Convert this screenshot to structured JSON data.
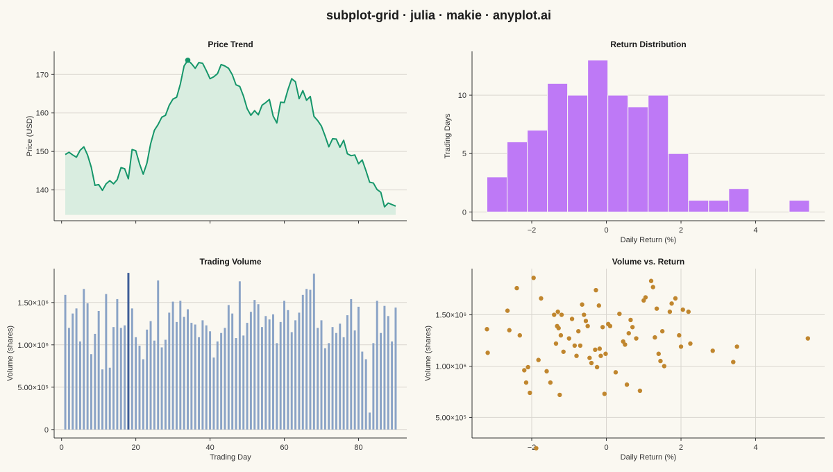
{
  "title": "subplot-grid · julia · makie · anyplot.ai",
  "colors": {
    "background": "#FAF8F1",
    "price_line": "#16966A",
    "price_fill": "#D9EDE0",
    "histogram": "#BE79F6",
    "volume_bar": "#8AA3C6",
    "volume_highlight": "#3D5D98",
    "scatter": "#C0862E"
  },
  "chart_data": [
    {
      "id": "price",
      "type": "area",
      "title": "Price Trend",
      "xlabel": "",
      "ylabel": "Price (USD)",
      "xlim": [
        -2,
        93
      ],
      "ylim": [
        132,
        176
      ],
      "xticks": [
        0,
        20,
        40,
        60,
        80
      ],
      "xtick_labels": [],
      "yticks": [
        140,
        150,
        160,
        170
      ],
      "grid": true,
      "highlight_day": 34,
      "x": [
        1,
        2,
        3,
        4,
        5,
        6,
        7,
        8,
        9,
        10,
        11,
        12,
        13,
        14,
        15,
        16,
        17,
        18,
        19,
        20,
        21,
        22,
        23,
        24,
        25,
        26,
        27,
        28,
        29,
        30,
        31,
        32,
        33,
        34,
        35,
        36,
        37,
        38,
        39,
        40,
        41,
        42,
        43,
        44,
        45,
        46,
        47,
        48,
        49,
        50,
        51,
        52,
        53,
        54,
        55,
        56,
        57,
        58,
        59,
        60,
        61,
        62,
        63,
        64,
        65,
        66,
        67,
        68,
        69,
        70,
        71,
        72,
        73,
        74,
        75,
        76,
        77,
        78,
        79,
        80,
        81,
        82,
        83,
        84,
        85,
        86,
        87,
        88,
        89,
        90
      ],
      "y": [
        149.2,
        149.8,
        149.1,
        148.5,
        150.3,
        151.2,
        149.1,
        145.9,
        141.2,
        141.4,
        139.9,
        141.6,
        142.4,
        141.6,
        142.7,
        145.8,
        145.5,
        142.9,
        150.5,
        150.2,
        146.8,
        144.1,
        147.0,
        152.0,
        155.5,
        157.0,
        158.9,
        159.4,
        162.0,
        163.6,
        164.1,
        167.5,
        172.2,
        173.7,
        172.8,
        171.6,
        173.1,
        172.9,
        171.0,
        168.9,
        169.4,
        170.2,
        172.6,
        172.2,
        171.6,
        169.9,
        167.3,
        166.9,
        164.4,
        161.1,
        159.4,
        160.6,
        159.5,
        162.0,
        162.7,
        163.5,
        159.2,
        157.4,
        162.8,
        162.7,
        166.1,
        168.9,
        168.1,
        163.7,
        165.8,
        163.3,
        164.3,
        159.1,
        158.0,
        156.6,
        154.0,
        151.2,
        153.3,
        153.2,
        151.1,
        152.9,
        149.4,
        148.9,
        149.1,
        146.8,
        147.8,
        145.0,
        142.0,
        141.8,
        140.1,
        139.4,
        135.6,
        136.6,
        136.2,
        135.8
      ]
    },
    {
      "id": "returns",
      "type": "bar",
      "title": "Return Distribution",
      "xlabel": "Daily Return (%)",
      "ylabel": "Trading Days",
      "xlim": [
        -3.6,
        5.85
      ],
      "ylim": [
        -0.75,
        13.75
      ],
      "xticks": [
        -2,
        0,
        2,
        4
      ],
      "xtick_labels": [
        "−2",
        "0",
        "2",
        "4"
      ],
      "yticks": [
        0,
        5,
        10
      ],
      "grid": true,
      "bin_start": -3.2,
      "bin_width": 0.54,
      "counts": [
        3,
        6,
        7,
        11,
        10,
        13,
        10,
        9,
        10,
        5,
        1,
        1,
        2,
        0,
        0,
        1
      ]
    },
    {
      "id": "volume",
      "type": "bar",
      "title": "Trading Volume",
      "xlabel": "Trading Day",
      "ylabel": "Volume (shares)",
      "xlim": [
        -2,
        93
      ],
      "ylim": [
        -100000,
        1900000
      ],
      "xticks": [
        0,
        20,
        40,
        60,
        80
      ],
      "xtick_labels": [
        "0",
        "20",
        "40",
        "60",
        "80"
      ],
      "yticks": [
        0,
        500000,
        1000000,
        1500000
      ],
      "ytick_labels": [
        "0",
        "5.00×10⁵",
        "1.00×10⁶",
        "1.50×10⁶"
      ],
      "grid": true,
      "highlight_day": 18,
      "x": [
        1,
        2,
        3,
        4,
        5,
        6,
        7,
        8,
        9,
        10,
        11,
        12,
        13,
        14,
        15,
        16,
        17,
        18,
        19,
        20,
        21,
        22,
        23,
        24,
        25,
        26,
        27,
        28,
        29,
        30,
        31,
        32,
        33,
        34,
        35,
        36,
        37,
        38,
        39,
        40,
        41,
        42,
        43,
        44,
        45,
        46,
        47,
        48,
        49,
        50,
        51,
        52,
        53,
        54,
        55,
        56,
        57,
        58,
        59,
        60,
        61,
        62,
        63,
        64,
        65,
        66,
        67,
        68,
        69,
        70,
        71,
        72,
        73,
        74,
        75,
        76,
        77,
        78,
        79,
        80,
        81,
        82,
        83,
        84,
        85,
        86,
        87,
        88,
        89,
        90
      ],
      "values": [
        1590000,
        1200000,
        1370000,
        1430000,
        1040000,
        1660000,
        1490000,
        890000,
        1130000,
        1400000,
        710000,
        1600000,
        730000,
        1210000,
        1540000,
        1200000,
        1230000,
        1850000,
        1430000,
        1090000,
        990000,
        830000,
        1180000,
        1280000,
        1050000,
        1760000,
        970000,
        1060000,
        1380000,
        1510000,
        1270000,
        1520000,
        1330000,
        1420000,
        1260000,
        1240000,
        1090000,
        1290000,
        1230000,
        1160000,
        850000,
        1040000,
        1140000,
        1200000,
        1470000,
        1370000,
        1080000,
        1750000,
        1110000,
        1260000,
        1390000,
        1530000,
        1480000,
        1210000,
        1340000,
        1300000,
        1360000,
        1020000,
        1270000,
        1520000,
        1410000,
        1150000,
        1290000,
        1380000,
        1590000,
        1660000,
        1650000,
        1840000,
        1200000,
        1290000,
        960000,
        1020000,
        1210000,
        1140000,
        1250000,
        1090000,
        1350000,
        1540000,
        1170000,
        1450000,
        920000,
        830000,
        200000,
        1020000,
        1520000,
        1140000,
        1460000,
        1340000,
        1040000,
        1440000
      ]
    },
    {
      "id": "scatter",
      "type": "scatter",
      "title": "Volume vs. Return",
      "xlabel": "Daily Return (%)",
      "ylabel": "Volume (shares)",
      "xlim": [
        -3.6,
        5.85
      ],
      "ylim": [
        300000,
        1950000
      ],
      "xticks": [
        -2,
        0,
        2,
        4
      ],
      "xtick_labels": [
        "−2",
        "0",
        "2",
        "4"
      ],
      "yticks": [
        500000,
        1000000,
        1500000
      ],
      "ytick_labels": [
        "5.00×10⁵",
        "1.00×10⁶",
        "1.50×10⁶"
      ],
      "grid": true,
      "x": [
        -3.2,
        -3.18,
        -2.4,
        -2.65,
        -2.6,
        -2.32,
        -2.2,
        -2.15,
        -2.1,
        -2.05,
        -1.95,
        -1.88,
        -1.82,
        -1.75,
        -1.6,
        -1.5,
        -1.4,
        -1.35,
        -1.32,
        -1.3,
        -1.28,
        -1.25,
        -1.22,
        -1.2,
        -1.15,
        -1.0,
        -0.92,
        -0.85,
        -0.8,
        -0.75,
        -0.7,
        -0.65,
        -0.6,
        -0.55,
        -0.5,
        -0.45,
        -0.4,
        -0.3,
        -0.28,
        -0.25,
        -0.2,
        -0.18,
        -0.15,
        -0.1,
        -0.05,
        -0.02,
        0.05,
        0.1,
        0.25,
        0.35,
        0.45,
        0.5,
        0.55,
        0.6,
        0.65,
        0.7,
        0.8,
        0.9,
        1.0,
        1.05,
        1.2,
        1.25,
        1.3,
        1.35,
        1.4,
        1.45,
        1.5,
        1.55,
        1.7,
        1.75,
        1.85,
        1.95,
        2.0,
        2.05,
        2.2,
        2.25,
        2.85,
        3.4,
        3.5,
        5.4
      ],
      "y": [
        1360000,
        1130000,
        1760000,
        1540000,
        1350000,
        1300000,
        960000,
        840000,
        990000,
        740000,
        1860000,
        200000,
        1060000,
        1660000,
        950000,
        840000,
        1500000,
        1220000,
        1390000,
        1530000,
        1370000,
        720000,
        1300000,
        1500000,
        1140000,
        1270000,
        1460000,
        1200000,
        1100000,
        1340000,
        1200000,
        1600000,
        1500000,
        1440000,
        1390000,
        1080000,
        1030000,
        1160000,
        1740000,
        990000,
        1590000,
        1170000,
        1100000,
        1380000,
        730000,
        1120000,
        1410000,
        1390000,
        940000,
        1510000,
        1240000,
        1210000,
        820000,
        1320000,
        1450000,
        1380000,
        1270000,
        760000,
        1640000,
        1670000,
        1830000,
        1770000,
        1280000,
        1560000,
        1120000,
        1050000,
        1340000,
        1000000,
        1530000,
        1610000,
        1660000,
        1300000,
        1190000,
        1550000,
        1530000,
        1220000,
        1150000,
        1040000,
        1190000,
        1270000
      ]
    }
  ]
}
